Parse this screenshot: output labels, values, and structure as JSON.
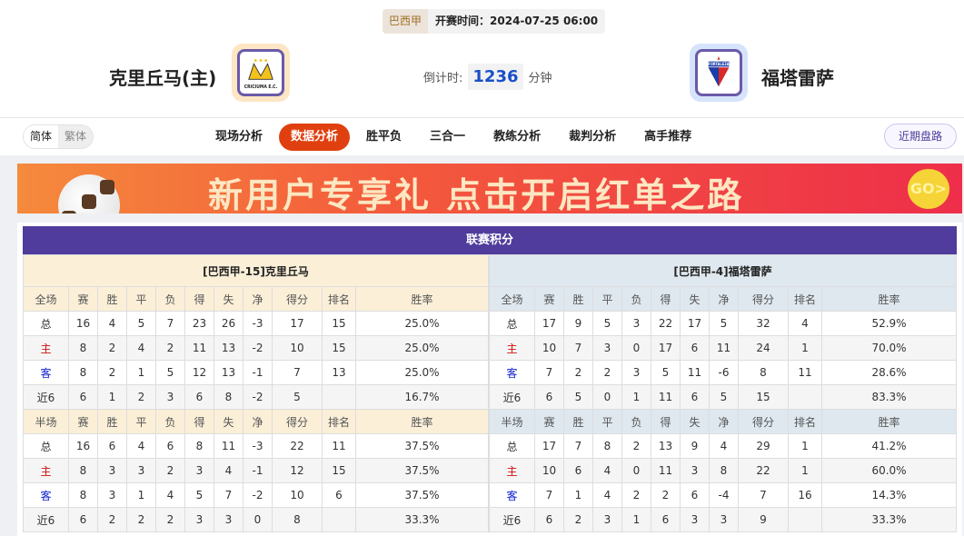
{
  "match": {
    "league": "巴西甲",
    "kickoff": "开赛时间：2024-07-25 06:00",
    "home_team": "克里丘马(主)",
    "away_team": "福塔雷萨",
    "countdown_label": "倒计时:",
    "countdown_value": "1236",
    "countdown_unit": "分钟",
    "home_logo_text": "CRICIUMA E.C.",
    "away_logo_text": "FORTALEZA"
  },
  "nav": {
    "lang_simplified": "简体",
    "lang_traditional": "繁体",
    "tabs": [
      "现场分析",
      "数据分析",
      "胜平负",
      "三合一",
      "教练分析",
      "裁判分析",
      "高手推荐"
    ],
    "active_tab": "数据分析",
    "recent": "近期盘路"
  },
  "banner": {
    "text": "新用户专享礼  点击开启红单之路",
    "go": "GO>"
  },
  "colors": {
    "accent": "#e0400f",
    "title_bar": "#4f3c9c",
    "home_label": "#d01010",
    "away_label": "#1020d0"
  },
  "standings": {
    "title": "联赛积分",
    "full_header": [
      "全场",
      "赛",
      "胜",
      "平",
      "负",
      "得",
      "失",
      "净",
      "得分",
      "排名",
      "胜率"
    ],
    "half_header": [
      "半场",
      "赛",
      "胜",
      "平",
      "负",
      "得",
      "失",
      "净",
      "得分",
      "排名",
      "胜率"
    ],
    "home": {
      "name": "[巴西甲-15]克里丘马",
      "full": [
        [
          "总",
          "16",
          "4",
          "5",
          "7",
          "23",
          "26",
          "-3",
          "17",
          "15",
          "25.0%"
        ],
        [
          "主",
          "8",
          "2",
          "4",
          "2",
          "11",
          "13",
          "-2",
          "10",
          "15",
          "25.0%"
        ],
        [
          "客",
          "8",
          "2",
          "1",
          "5",
          "12",
          "13",
          "-1",
          "7",
          "13",
          "25.0%"
        ],
        [
          "近6",
          "6",
          "1",
          "2",
          "3",
          "6",
          "8",
          "-2",
          "5",
          "",
          "16.7%"
        ]
      ],
      "half": [
        [
          "总",
          "16",
          "6",
          "4",
          "6",
          "8",
          "11",
          "-3",
          "22",
          "11",
          "37.5%"
        ],
        [
          "主",
          "8",
          "3",
          "3",
          "2",
          "3",
          "4",
          "-1",
          "12",
          "15",
          "37.5%"
        ],
        [
          "客",
          "8",
          "3",
          "1",
          "4",
          "5",
          "7",
          "-2",
          "10",
          "6",
          "37.5%"
        ],
        [
          "近6",
          "6",
          "2",
          "2",
          "2",
          "3",
          "3",
          "0",
          "8",
          "",
          "33.3%"
        ]
      ]
    },
    "away": {
      "name": "[巴西甲-4]福塔雷萨",
      "full": [
        [
          "总",
          "17",
          "9",
          "5",
          "3",
          "22",
          "17",
          "5",
          "32",
          "4",
          "52.9%"
        ],
        [
          "主",
          "10",
          "7",
          "3",
          "0",
          "17",
          "6",
          "11",
          "24",
          "1",
          "70.0%"
        ],
        [
          "客",
          "7",
          "2",
          "2",
          "3",
          "5",
          "11",
          "-6",
          "8",
          "11",
          "28.6%"
        ],
        [
          "近6",
          "6",
          "5",
          "0",
          "1",
          "11",
          "6",
          "5",
          "15",
          "",
          "83.3%"
        ]
      ],
      "half": [
        [
          "总",
          "17",
          "7",
          "8",
          "2",
          "13",
          "9",
          "4",
          "29",
          "1",
          "41.2%"
        ],
        [
          "主",
          "10",
          "6",
          "4",
          "0",
          "11",
          "3",
          "8",
          "22",
          "1",
          "60.0%"
        ],
        [
          "客",
          "7",
          "1",
          "4",
          "2",
          "2",
          "6",
          "-4",
          "7",
          "16",
          "14.3%"
        ],
        [
          "近6",
          "6",
          "2",
          "3",
          "1",
          "6",
          "3",
          "3",
          "9",
          "",
          "33.3%"
        ]
      ]
    }
  }
}
